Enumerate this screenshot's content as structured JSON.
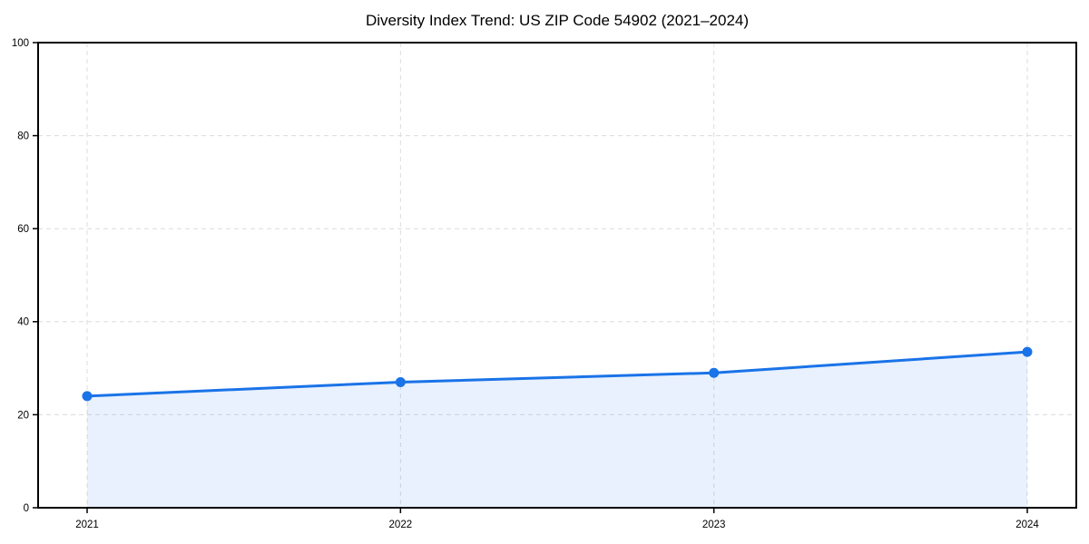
{
  "chart_data": {
    "type": "line",
    "title": "Diversity Index Trend: US ZIP Code 54902 (2021–2024)",
    "x": [
      "2021",
      "2022",
      "2023",
      "2024"
    ],
    "series": [
      {
        "name": "Diversity Index",
        "values": [
          24,
          27,
          29,
          33.5
        ]
      }
    ],
    "xlabel": "",
    "ylabel": "",
    "ylim": [
      0,
      100
    ],
    "yticks": [
      0,
      20,
      40,
      60,
      80,
      100
    ],
    "grid": true,
    "grid_style": "dashed",
    "legend": false,
    "area_fill": true,
    "markers": true
  },
  "colors": {
    "line": "#1a73e8",
    "marker": "#1a73e8",
    "fill": "rgba(26,115,232,0.10)",
    "grid": "#dcdcdc",
    "axis": "#000000",
    "tick_label": "#000000",
    "background": "#ffffff"
  }
}
